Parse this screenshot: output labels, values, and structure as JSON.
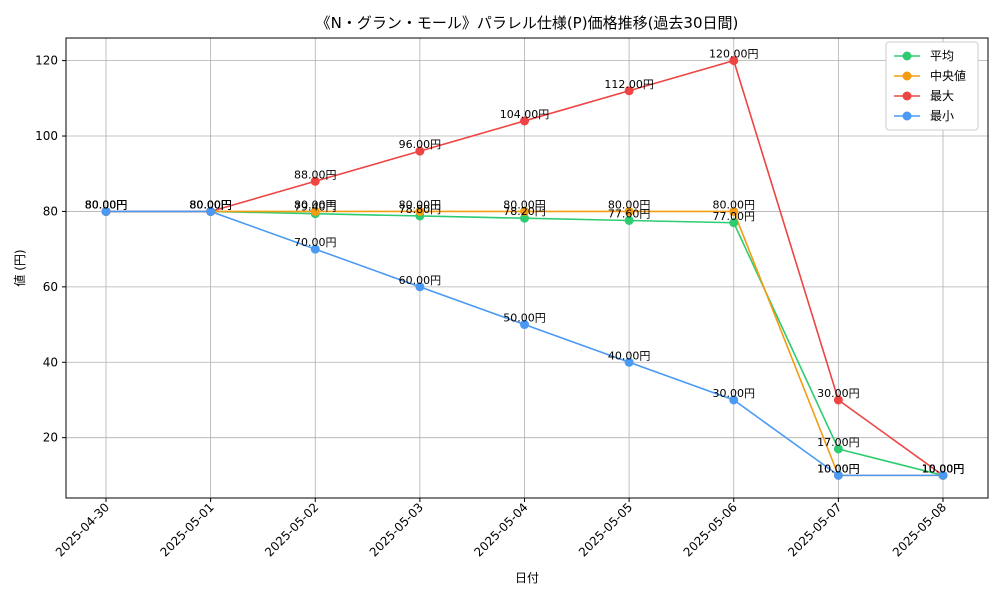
{
  "chart_data": {
    "type": "line",
    "title": "《N・グラン・モール》パラレル仕様(P)価格推移(過去30日間)",
    "xlabel": "日付",
    "ylabel": "値 (円)",
    "x": [
      "2025-04-30",
      "2025-05-01",
      "2025-05-02",
      "2025-05-03",
      "2025-05-04",
      "2025-05-05",
      "2025-05-06",
      "2025-05-07",
      "2025-05-08"
    ],
    "ylim": [
      4,
      126
    ],
    "yticks": [
      "20",
      "40",
      "60",
      "80",
      "100",
      "120"
    ],
    "grid": true,
    "legend_position": "top-right",
    "value_suffix": "円",
    "series": [
      {
        "name": "平均",
        "color": "#2ecc71",
        "values": [
          80,
          80,
          79.4,
          78.8,
          78.2,
          77.6,
          77.0,
          17.0,
          10.0
        ],
        "labels": [
          "80.00円",
          "80.00円",
          "79.40円",
          "78.80円",
          "78.20円",
          "77.60円",
          "77.00円",
          "17.00円",
          "10.00円"
        ]
      },
      {
        "name": "中央値",
        "color": "#f39c12",
        "values": [
          80,
          80,
          80,
          80,
          80,
          80,
          80,
          10,
          10
        ],
        "labels": [
          "80.00円",
          "80.00円",
          "80.00円",
          "80.00円",
          "80.00円",
          "80.00円",
          "80.00円",
          "10.00円",
          "10.00円"
        ]
      },
      {
        "name": "最大",
        "color": "#ef4444",
        "values": [
          80,
          80,
          88,
          96,
          104,
          112,
          120,
          30,
          10
        ],
        "labels": [
          "80.00円",
          "80.00円",
          "88.00円",
          "96.00円",
          "104.00円",
          "112.00円",
          "120.00円",
          "30.00円",
          "10.00円"
        ]
      },
      {
        "name": "最小",
        "color": "#4a9af5",
        "values": [
          80,
          80,
          70,
          60,
          50,
          40,
          30,
          10,
          10
        ],
        "labels": [
          "80.00円",
          "80.00円",
          "70.00円",
          "60.00円",
          "50.00円",
          "40.00円",
          "30.00円",
          "10.00円",
          "10.00円"
        ]
      }
    ]
  }
}
